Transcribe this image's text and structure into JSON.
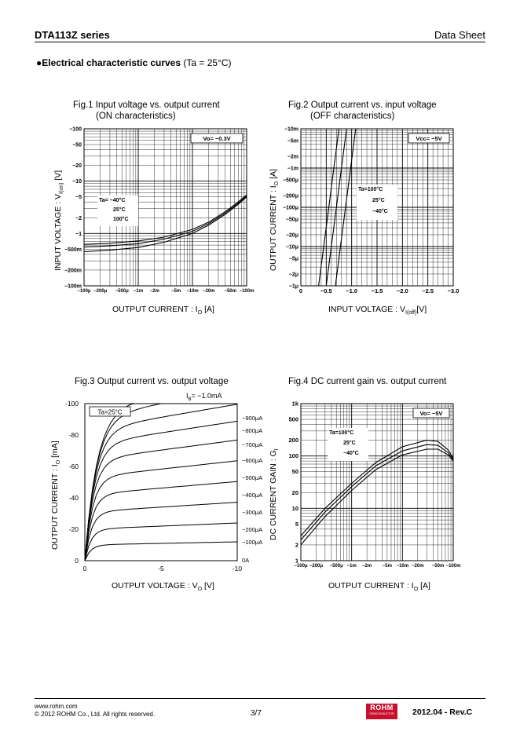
{
  "header": {
    "title": "DTA113Z series",
    "doc_type": "Data Sheet"
  },
  "section": {
    "bullet": "●",
    "title_bold": "Electrical characteristic curves",
    "title_rest": " (Ta = 25°C)"
  },
  "fig1": {
    "caption_line1": "Fig.1 Input voltage vs. output current",
    "caption_line2": "(ON characteristics)",
    "condition": "Vo= −0.3V",
    "y_ticks": [
      "−100",
      "−50",
      "−20",
      "−10",
      "−5",
      "−2",
      "−1",
      "−500m",
      "−200m",
      "−100m"
    ],
    "x_ticks": [
      "−100μ",
      "−200μ",
      "−500μ",
      "−1m",
      "−2m",
      "−5m",
      "−10m",
      "−20m",
      "−50m",
      "−100m"
    ],
    "legend": [
      "Ta= −40°C",
      "25°C",
      "100°C"
    ],
    "xlabel": "OUTPUT CURRENT : I",
    "xlabel_sub": "O",
    "xlabel_unit": " [A]",
    "ylabel": "INPUT VOLTAGE : V",
    "ylabel_sub": "I(on)",
    "ylabel_unit": " [V]"
  },
  "fig2": {
    "caption_line1": "Fig.2 Output current vs. input voltage",
    "caption_line2": "(OFF characteristics)",
    "condition": "Vcc= −5V",
    "y_ticks": [
      "−10m",
      "−5m",
      "−2m",
      "−1m",
      "−500μ",
      "−200μ",
      "−100μ",
      "−50μ",
      "−20μ",
      "−10μ",
      "−5μ",
      "−2μ",
      "−1μ"
    ],
    "x_ticks": [
      "0",
      "−0.5",
      "−1.0",
      "−1.5",
      "−2.0",
      "−2.5",
      "−3.0"
    ],
    "legend": [
      "Ta=100°C",
      "25°C",
      "−40°C"
    ],
    "xlabel": "INPUT VOLTAGE : V",
    "xlabel_sub": "I(off)",
    "xlabel_unit": "[V]",
    "ylabel": "OUTPUT CURRENT : I",
    "ylabel_sub": "O",
    "ylabel_unit": " [A]"
  },
  "fig3": {
    "caption": "Fig.3 Output current  vs. output voltage",
    "ib_note": "I",
    "ib_note_sub": "B",
    "ib_note_val": "= −1.0mA",
    "condition": "Ta=25°C",
    "y_ticks": [
      "-100",
      "-80",
      "-60",
      "-40",
      "-20",
      "0"
    ],
    "x_ticks": [
      "0",
      "-5",
      "-10"
    ],
    "curve_labels": [
      "−900μA",
      "−800μA",
      "−700μA",
      "−600μA",
      "−500μA",
      "−400μA",
      "−300μA",
      "−200μA",
      "−100μA",
      "0A"
    ],
    "xlabel": "OUTPUT VOLTAGE : V",
    "xlabel_sub": "O",
    "xlabel_unit": " [V]",
    "ylabel": "OUTPUT CURRENT : I",
    "ylabel_sub": "O",
    "ylabel_unit": " [mA]"
  },
  "fig4": {
    "caption": "Fig.4 DC current gain vs. output current",
    "condition": "Vo= −5V",
    "y_ticks": [
      "1k",
      "500",
      "200",
      "100",
      "50",
      "20",
      "10",
      "5",
      "2",
      "1"
    ],
    "x_ticks": [
      "−100μ",
      "−200μ",
      "−500μ",
      "−1m",
      "−2m",
      "−5m",
      "−10m",
      "−20m",
      "−50m",
      "−100m"
    ],
    "legend": [
      "Ta=100°C",
      "25°C",
      "−40°C"
    ],
    "xlabel": "OUTPUT CURRENT : I",
    "xlabel_sub": "O",
    "xlabel_unit": " [A]",
    "ylabel": "DC CURRENT GAIN : G",
    "ylabel_sub": "I",
    "ylabel_unit": ""
  },
  "chart_data": [
    {
      "type": "line",
      "title": "Fig.1 Input voltage vs. output current (ON characteristics)",
      "xscale": "log",
      "yscale": "log",
      "xlabel": "OUTPUT CURRENT : IO [A]",
      "ylabel": "INPUT VOLTAGE : VI(on) [V]",
      "xlim": [
        0.0001,
        0.1
      ],
      "ylim": [
        0.1,
        100
      ],
      "series": [
        {
          "name": "Ta= −40°C",
          "x": [
            0.0001,
            0.0003,
            0.001,
            0.003,
            0.01,
            0.02,
            0.04,
            0.07,
            0.1
          ],
          "y": [
            0.62,
            0.65,
            0.72,
            0.85,
            1.2,
            1.65,
            2.6,
            4.0,
            5.5
          ]
        },
        {
          "name": "25°C",
          "x": [
            0.0001,
            0.0003,
            0.001,
            0.003,
            0.01,
            0.02,
            0.04,
            0.07,
            0.1
          ],
          "y": [
            0.55,
            0.58,
            0.64,
            0.78,
            1.1,
            1.55,
            2.45,
            3.8,
            5.2
          ]
        },
        {
          "name": "100°C",
          "x": [
            0.0001,
            0.0003,
            0.001,
            0.003,
            0.01,
            0.02,
            0.04,
            0.07,
            0.1
          ],
          "y": [
            0.45,
            0.48,
            0.54,
            0.68,
            1.0,
            1.45,
            2.3,
            3.6,
            5.0
          ]
        }
      ]
    },
    {
      "type": "line",
      "title": "Fig.2 Output current vs. input voltage (OFF characteristics)",
      "xscale": "linear",
      "yscale": "log",
      "xlabel": "INPUT VOLTAGE : VI(off) [V]",
      "ylabel": "OUTPUT CURRENT : IO [A]",
      "xlim": [
        0,
        3.0
      ],
      "ylim": [
        1e-06,
        0.01
      ],
      "series": [
        {
          "name": "Ta=100°C",
          "x": [
            0.35,
            0.45,
            0.55,
            0.65,
            0.75
          ],
          "y": [
            1e-06,
            1e-05,
            0.0001,
            0.001,
            0.01
          ]
        },
        {
          "name": "25°C",
          "x": [
            0.5,
            0.6,
            0.7,
            0.8,
            0.9
          ],
          "y": [
            1e-06,
            1e-05,
            0.0001,
            0.001,
            0.01
          ]
        },
        {
          "name": "−40°C",
          "x": [
            0.68,
            0.78,
            0.88,
            0.98,
            1.08
          ],
          "y": [
            1e-06,
            1e-05,
            0.0001,
            0.001,
            0.01
          ]
        }
      ]
    },
    {
      "type": "line",
      "title": "Fig.3 Output current vs. output voltage",
      "xscale": "linear",
      "yscale": "linear",
      "xlabel": "OUTPUT VOLTAGE : VO [V]",
      "ylabel": "OUTPUT CURRENT : IO [mA]",
      "xlim": [
        0,
        10
      ],
      "ylim": [
        0,
        100
      ],
      "series_sat_values": {
        "−1.0mA": 96,
        "−900μA": 91,
        "−800μA": 83,
        "−700μA": 74,
        "−600μA": 64,
        "−500μA": 53,
        "−400μA": 42,
        "−300μA": 31,
        "−200μA": 20,
        "−100μA": 10,
        "0A": 0
      }
    },
    {
      "type": "line",
      "title": "Fig.4 DC current gain vs. output current",
      "xscale": "log",
      "yscale": "log",
      "xlabel": "OUTPUT CURRENT : IO [A]",
      "ylabel": "DC CURRENT GAIN : GI",
      "xlim": [
        0.0001,
        0.1
      ],
      "ylim": [
        1,
        1000
      ],
      "series": [
        {
          "name": "Ta=100°C",
          "x": [
            0.0001,
            0.0003,
            0.001,
            0.003,
            0.01,
            0.03,
            0.05,
            0.08,
            0.1
          ],
          "y": [
            3,
            10,
            30,
            75,
            150,
            200,
            190,
            130,
            90
          ]
        },
        {
          "name": "25°C",
          "x": [
            0.0001,
            0.0003,
            0.001,
            0.003,
            0.01,
            0.03,
            0.05,
            0.08,
            0.1
          ],
          "y": [
            2.5,
            8.5,
            26,
            65,
            125,
            165,
            160,
            115,
            85
          ]
        },
        {
          "name": "−40°C",
          "x": [
            0.0001,
            0.0003,
            0.001,
            0.003,
            0.01,
            0.03,
            0.05,
            0.08,
            0.1
          ],
          "y": [
            2,
            7,
            22,
            55,
            105,
            135,
            135,
            105,
            80
          ]
        }
      ]
    }
  ],
  "footer": {
    "url": "www.rohm.com",
    "copyright": "© 2012  ROHM Co., Ltd. All rights reserved.",
    "page": "3/7",
    "revision": "2012.04 -  Rev.C",
    "logo_text": "ROHM",
    "logo_sub": "SEMICONDUCTOR"
  }
}
